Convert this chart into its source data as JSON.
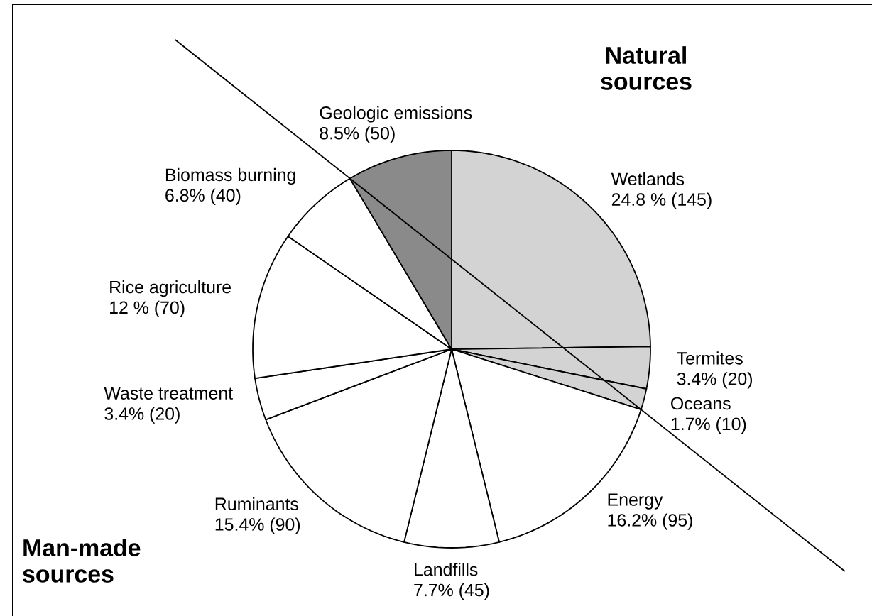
{
  "chart_data": {
    "type": "pie",
    "categories": [
      "Wetlands",
      "Termites",
      "Oceans",
      "Energy",
      "Landfills",
      "Ruminants",
      "Waste treatment",
      "Rice agriculture",
      "Biomass burning",
      "Geologic emissions"
    ],
    "values": [
      145,
      20,
      10,
      95,
      45,
      90,
      20,
      70,
      40,
      50
    ],
    "value_labels": [
      "24.8 % (145)",
      "3.4% (20)",
      "1.7% (10)",
      "16.2% (95)",
      "7.7% (45)",
      "15.4% (90)",
      "3.4% (20)",
      "12 % (70)",
      "6.8% (40)",
      "8.5% (50)"
    ],
    "colors": [
      "#d3d3d3",
      "#d3d3d3",
      "#d3d3d3",
      "#ffffff",
      "#ffffff",
      "#ffffff",
      "#ffffff",
      "#ffffff",
      "#ffffff",
      "#8a8a8a"
    ],
    "annotations": [
      "Natural sources",
      "Man-made sources"
    ]
  }
}
